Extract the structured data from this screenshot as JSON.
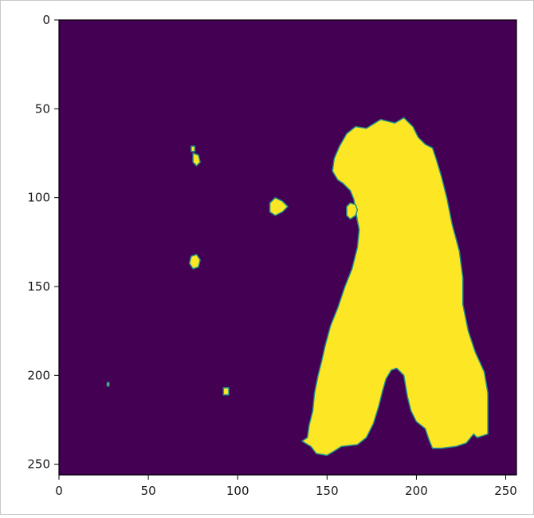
{
  "chart_data": {
    "type": "heatmap",
    "title": "",
    "xlabel": "",
    "ylabel": "",
    "xlim": [
      0,
      256
    ],
    "ylim": [
      256,
      0
    ],
    "y_axis_inverted": true,
    "grid": false,
    "colormap": "viridis",
    "colors": {
      "background": "#440154",
      "foreground": "#fde725",
      "edge": "#21918c"
    },
    "xticks": [
      0,
      50,
      100,
      150,
      200,
      250
    ],
    "yticks": [
      0,
      50,
      100,
      150,
      200,
      250
    ],
    "regions": [
      {
        "name": "main-blob",
        "value": 1,
        "polygon": [
          [
            193,
            55
          ],
          [
            188,
            58
          ],
          [
            180,
            56
          ],
          [
            172,
            61
          ],
          [
            166,
            60
          ],
          [
            161,
            64
          ],
          [
            157,
            71
          ],
          [
            154,
            78
          ],
          [
            153,
            85
          ],
          [
            156,
            90
          ],
          [
            159,
            92
          ],
          [
            163,
            96
          ],
          [
            165,
            101
          ],
          [
            166,
            107
          ],
          [
            167,
            113
          ],
          [
            168,
            118
          ],
          [
            167,
            128
          ],
          [
            164,
            140
          ],
          [
            160,
            150
          ],
          [
            156,
            162
          ],
          [
            152,
            172
          ],
          [
            149,
            183
          ],
          [
            147,
            192
          ],
          [
            145,
            200
          ],
          [
            143,
            210
          ],
          [
            142,
            220
          ],
          [
            140,
            228
          ],
          [
            139,
            235
          ],
          [
            136,
            237
          ],
          [
            141,
            240
          ],
          [
            144,
            244
          ],
          [
            150,
            245
          ],
          [
            155,
            242
          ],
          [
            158,
            240
          ],
          [
            167,
            239
          ],
          [
            172,
            235
          ],
          [
            176,
            227
          ],
          [
            179,
            217
          ],
          [
            181,
            209
          ],
          [
            183,
            202
          ],
          [
            186,
            197
          ],
          [
            189,
            196
          ],
          [
            193,
            200
          ],
          [
            195,
            212
          ],
          [
            197,
            220
          ],
          [
            200,
            226
          ],
          [
            205,
            230
          ],
          [
            207,
            236
          ],
          [
            209,
            241
          ],
          [
            214,
            241
          ],
          [
            222,
            240
          ],
          [
            228,
            238
          ],
          [
            232,
            233
          ],
          [
            234,
            235
          ],
          [
            240,
            233
          ],
          [
            240,
            222
          ],
          [
            240,
            210
          ],
          [
            238,
            198
          ],
          [
            233,
            187
          ],
          [
            229,
            175
          ],
          [
            226,
            160
          ],
          [
            226,
            145
          ],
          [
            224,
            130
          ],
          [
            220,
            115
          ],
          [
            217,
            100
          ],
          [
            214,
            88
          ],
          [
            211,
            78
          ],
          [
            209,
            72
          ],
          [
            205,
            70
          ],
          [
            201,
            66
          ],
          [
            198,
            60
          ]
        ]
      },
      {
        "name": "blob-120-105",
        "value": 1,
        "polygon": [
          [
            118,
            103
          ],
          [
            121,
            100
          ],
          [
            125,
            102
          ],
          [
            128,
            105
          ],
          [
            125,
            108
          ],
          [
            121,
            110
          ],
          [
            118,
            108
          ]
        ]
      },
      {
        "name": "blob-164-108",
        "value": 1,
        "polygon": [
          [
            161,
            105
          ],
          [
            163,
            103
          ],
          [
            166,
            104
          ],
          [
            167,
            107
          ],
          [
            166,
            110
          ],
          [
            163,
            112
          ],
          [
            161,
            110
          ]
        ]
      },
      {
        "name": "blob-76-136",
        "value": 1,
        "polygon": [
          [
            74,
            133
          ],
          [
            77,
            132
          ],
          [
            79,
            135
          ],
          [
            78,
            139
          ],
          [
            75,
            140
          ],
          [
            73,
            137
          ]
        ]
      },
      {
        "name": "blob-77-78",
        "value": 1,
        "polygon": [
          [
            75,
            75
          ],
          [
            78,
            76
          ],
          [
            79,
            80
          ],
          [
            77,
            82
          ],
          [
            75,
            80
          ]
        ]
      },
      {
        "name": "blob-93-209",
        "value": 1,
        "polygon": [
          [
            92,
            207
          ],
          [
            95,
            207
          ],
          [
            95,
            211
          ],
          [
            92,
            211
          ]
        ]
      },
      {
        "name": "blob-74-72",
        "value": 1,
        "polygon": [
          [
            74,
            71
          ],
          [
            76,
            71
          ],
          [
            76,
            74
          ],
          [
            74,
            74
          ]
        ]
      },
      {
        "name": "blob-27-205",
        "value": 1,
        "polygon": [
          [
            27,
            204
          ],
          [
            28,
            204
          ],
          [
            28,
            206
          ],
          [
            27,
            206
          ]
        ]
      }
    ]
  }
}
